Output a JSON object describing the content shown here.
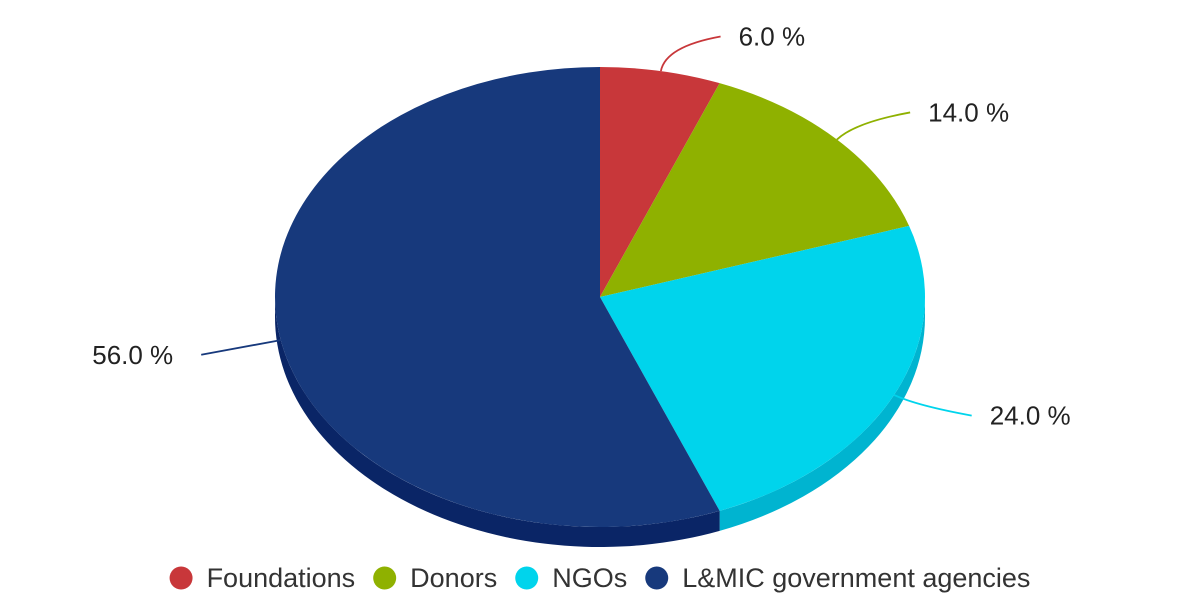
{
  "chart_data": {
    "type": "pie",
    "title": "",
    "value_format": "{v} %",
    "series": [
      {
        "name": "Foundations",
        "value": 6.0,
        "color": "#c8373a",
        "side_color": "#9e2a2d"
      },
      {
        "name": "Donors",
        "value": 14.0,
        "color": "#8fb100",
        "side_color": "#6f8a00"
      },
      {
        "name": "NGOs",
        "value": 24.0,
        "color": "#00d4ec",
        "side_color": "#00b4d0"
      },
      {
        "name": "L&MIC government agencies",
        "value": 56.0,
        "color": "#17397c",
        "side_color": "#0a2566"
      }
    ],
    "legend_position": "bottom"
  }
}
